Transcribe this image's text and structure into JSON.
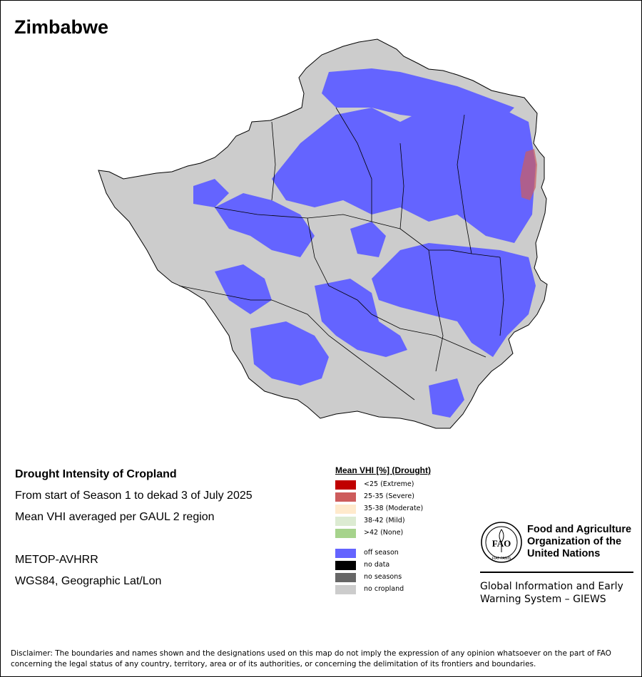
{
  "map_title": "Zimbabwe",
  "info": {
    "heading": "Drought Intensity of Cropland",
    "period": "From start of Season 1 to dekad 3 of July 2025",
    "method": "Mean VHI averaged per GAUL 2 region",
    "sensor": "METOP-AVHRR",
    "projection": "WGS84, Geographic Lat/Lon"
  },
  "legend": {
    "title": "Mean VHI [%] (Drought)",
    "vhi_classes": [
      {
        "label": "<25    (Extreme)",
        "color": "#c00000"
      },
      {
        "label": "25-35 (Severe)",
        "color": "#cd5c5c"
      },
      {
        "label": "35-38 (Moderate)",
        "color": "#ffeacc"
      },
      {
        "label": "38-42 (Mild)",
        "color": "#dcebd2"
      },
      {
        "label": ">42    (None)",
        "color": "#a6d38c"
      }
    ],
    "other_classes": [
      {
        "label": "off season",
        "color": "#6464ff"
      },
      {
        "label": "no data",
        "color": "#000000"
      },
      {
        "label": "no seasons",
        "color": "#666666"
      },
      {
        "label": "no cropland",
        "color": "#cccccc"
      }
    ]
  },
  "map_colors": {
    "country_fill": "#cccccc",
    "off_season": "#6464ff",
    "severe": "#cd5c5c",
    "boundary": "#000000"
  },
  "organization": {
    "logo_text": "FAO",
    "logo_motto": "FIAT PANIS",
    "name": "Food and Agriculture Organization of the United Nations",
    "system": "Global Information and Early Warning System – GIEWS"
  },
  "disclaimer": "Disclaimer: The boundaries and names shown and the designations used on this map do not imply the expression of any opinion whatsoever on the part of FAO concerning the legal status of any country, territory, area or of its authorities, or concerning the delimitation of its frontiers and boundaries."
}
